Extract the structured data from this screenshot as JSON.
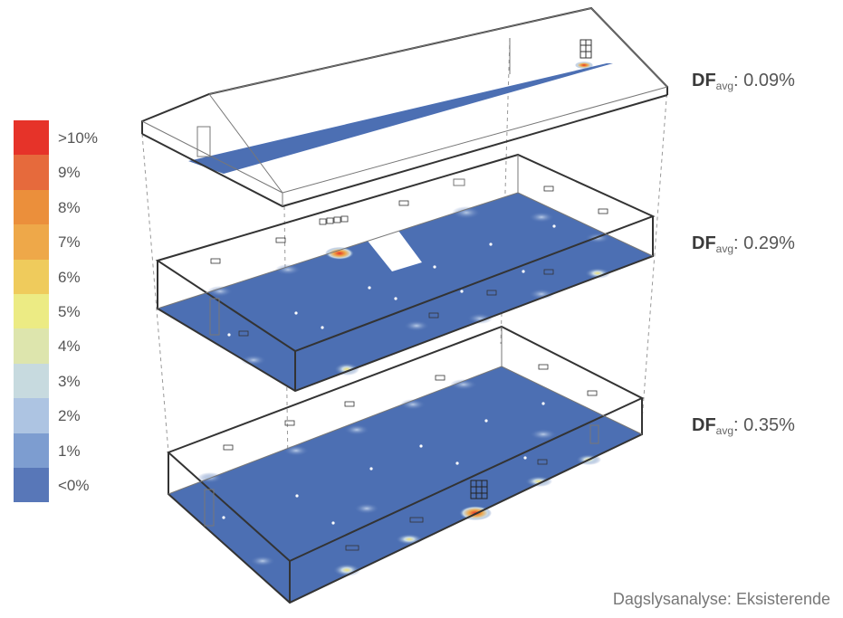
{
  "legend": {
    "items": [
      {
        "label": ">10%",
        "color": "#e63329"
      },
      {
        "label": "9%",
        "color": "#e66a3c"
      },
      {
        "label": "8%",
        "color": "#eb8f3b"
      },
      {
        "label": "7%",
        "color": "#eea849"
      },
      {
        "label": "6%",
        "color": "#efcb5c"
      },
      {
        "label": "5%",
        "color": "#eceb84"
      },
      {
        "label": "4%",
        "color": "#dde5ad"
      },
      {
        "label": "3%",
        "color": "#c7dadf"
      },
      {
        "label": "2%",
        "color": "#adc4e2"
      },
      {
        "label": "1%",
        "color": "#7d9dd0"
      },
      {
        "label": "<0%",
        "color": "#5877b8"
      }
    ]
  },
  "floors": {
    "roof": {
      "label": "DF",
      "sub": "avg",
      "value": ": 0.09%"
    },
    "middle": {
      "label": "DF",
      "sub": "avg",
      "value": ": 0.29%"
    },
    "ground": {
      "label": "DF",
      "sub": "avg",
      "value": ": 0.35%"
    }
  },
  "caption": "Dagslysanalyse: Eksisterende",
  "colors": {
    "floor_blue": "#4c6fb3",
    "edge": "#333333",
    "thin_edge": "#666666"
  }
}
